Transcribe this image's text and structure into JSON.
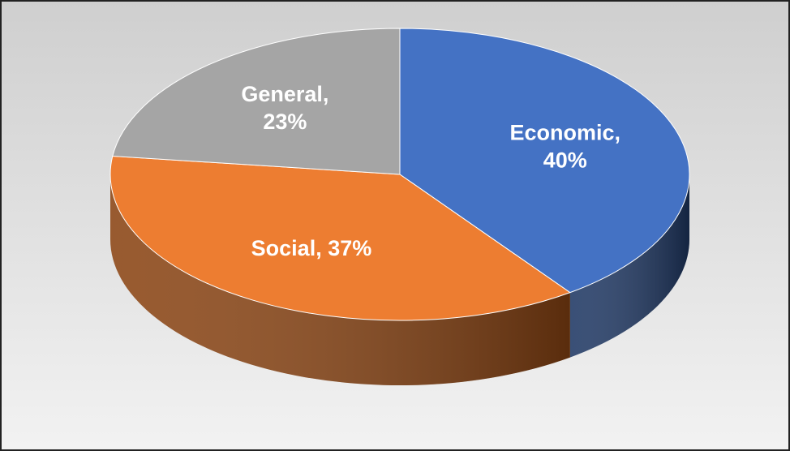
{
  "chart_data": {
    "type": "pie3d",
    "values": [
      40,
      37,
      23
    ],
    "value_labels": [
      "Economic, 40%",
      "Social, 37%",
      "General, 23%"
    ],
    "colors": [
      "#4472c4",
      "#ed7d31",
      "#a5a5a5"
    ],
    "side_colors": [
      "#1f3864",
      "#8a4413",
      "#6b6b6b"
    ]
  }
}
